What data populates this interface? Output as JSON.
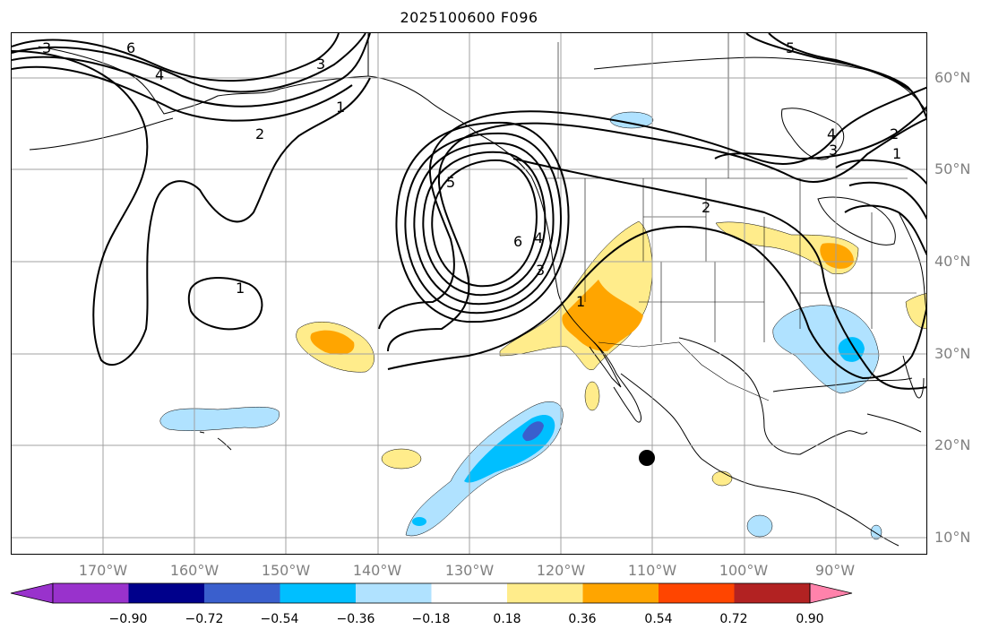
{
  "title": "2025100600 F096",
  "map": {
    "lat_labels": [
      "60°N",
      "50°N",
      "40°N",
      "30°N",
      "20°N",
      "10°N"
    ],
    "lon_labels": [
      "170°W",
      "160°W",
      "150°W",
      "140°W",
      "130°W",
      "120°W",
      "110°W",
      "100°W",
      "90°W"
    ],
    "contour_labels": [
      "3",
      "6",
      "4",
      "3",
      "2",
      "1",
      "2",
      "5",
      "6",
      "4",
      "3",
      "2",
      "1",
      "1",
      "4",
      "3",
      "2",
      "1",
      "5"
    ],
    "point_marker": {
      "lon": -110.5,
      "lat": 18.5
    }
  },
  "colorbar": {
    "ticks": [
      "−0.90",
      "−0.72",
      "−0.54",
      "−0.36",
      "−0.18",
      "0.18",
      "0.36",
      "0.54",
      "0.72",
      "0.90"
    ],
    "colors": [
      "#9932cc",
      "#00008b",
      "#3a5fcd",
      "#00bfff",
      "#b0e2ff",
      "#ffffff",
      "#ffec8b",
      "#ffa500",
      "#ff4500",
      "#b22222",
      "#ff82ab"
    ]
  }
}
